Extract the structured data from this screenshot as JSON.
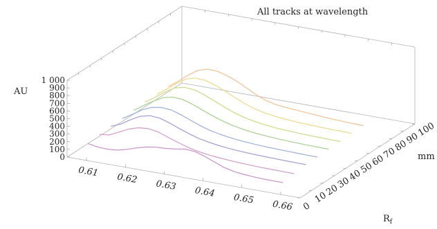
{
  "chart_data": {
    "type": "line",
    "title": "All tracks at wavelength",
    "ylabel": "AU",
    "xlabel_main": "R",
    "xlabel_sub": "f",
    "zlabel": "mm",
    "xlim": [
      0.605,
      0.665
    ],
    "ylim": [
      0,
      1000
    ],
    "zlim": [
      0,
      100
    ],
    "x_ticks": [
      "0.61",
      "0.62",
      "0.63",
      "0.64",
      "0.65",
      "0.66"
    ],
    "x_tick_values": [
      0.61,
      0.62,
      0.63,
      0.64,
      0.65,
      0.66
    ],
    "y_ticks": [
      "0",
      "100",
      "200",
      "300",
      "400",
      "500",
      "600",
      "700",
      "800",
      "900",
      "1 000"
    ],
    "y_tick_values": [
      0,
      100,
      200,
      300,
      400,
      500,
      600,
      700,
      800,
      900,
      1000
    ],
    "z_ticks": [
      "0",
      "10",
      "20",
      "30",
      "40",
      "50",
      "60",
      "70",
      "80",
      "90",
      "100"
    ],
    "z_tick_values": [
      0,
      10,
      20,
      30,
      40,
      50,
      60,
      70,
      80,
      90,
      100
    ],
    "x": [
      0.6075,
      0.61,
      0.6125,
      0.615,
      0.6175,
      0.62,
      0.6225,
      0.625,
      0.6275,
      0.63,
      0.6325,
      0.635,
      0.6375,
      0.64,
      0.6425,
      0.645,
      0.6475,
      0.65,
      0.6525,
      0.655,
      0.6575
    ],
    "series": [
      {
        "z": 10,
        "color": "#c890c8",
        "values": [
          100,
          78,
          72,
          82,
          115,
          155,
          190,
          210,
          215,
          230,
          250,
          240,
          200,
          150,
          100,
          70,
          55,
          45,
          40,
          38,
          36
        ]
      },
      {
        "z": 20,
        "color": "#d29ac8",
        "values": [
          125,
          140,
          200,
          260,
          300,
          310,
          290,
          245,
          200,
          160,
          130,
          110,
          95,
          85,
          75,
          70,
          65,
          62,
          60,
          58,
          56
        ]
      },
      {
        "z": 30,
        "color": "#a49ad6",
        "values": [
          135,
          185,
          265,
          330,
          360,
          350,
          310,
          260,
          215,
          175,
          150,
          130,
          115,
          105,
          98,
          92,
          88,
          85,
          82,
          80,
          78
        ]
      },
      {
        "z": 40,
        "color": "#9aaed8",
        "values": [
          140,
          215,
          295,
          350,
          370,
          360,
          320,
          270,
          222,
          182,
          155,
          135,
          120,
          110,
          102,
          96,
          92,
          88,
          85,
          82,
          80
        ]
      },
      {
        "z": 50,
        "color": "#a6d08e",
        "values": [
          150,
          235,
          315,
          380,
          410,
          400,
          360,
          310,
          260,
          215,
          180,
          155,
          135,
          122,
          112,
          104,
          98,
          94,
          90,
          88,
          86
        ]
      },
      {
        "z": 60,
        "color": "#cdd884",
        "values": [
          160,
          245,
          335,
          410,
          440,
          430,
          390,
          335,
          280,
          230,
          190,
          160,
          140,
          125,
          115,
          108,
          102,
          98,
          95,
          92,
          90
        ]
      },
      {
        "z": 70,
        "color": "#ecd98a",
        "values": [
          165,
          255,
          350,
          430,
          465,
          455,
          415,
          360,
          300,
          245,
          200,
          170,
          150,
          135,
          125,
          118,
          112,
          108,
          105,
          102,
          100
        ]
      },
      {
        "z": 80,
        "color": "#f2c093",
        "values": [
          170,
          260,
          360,
          445,
          485,
          480,
          445,
          395,
          330,
          265,
          210,
          180,
          165,
          155,
          145,
          135,
          125,
          118,
          112,
          108,
          105
        ]
      }
    ]
  }
}
